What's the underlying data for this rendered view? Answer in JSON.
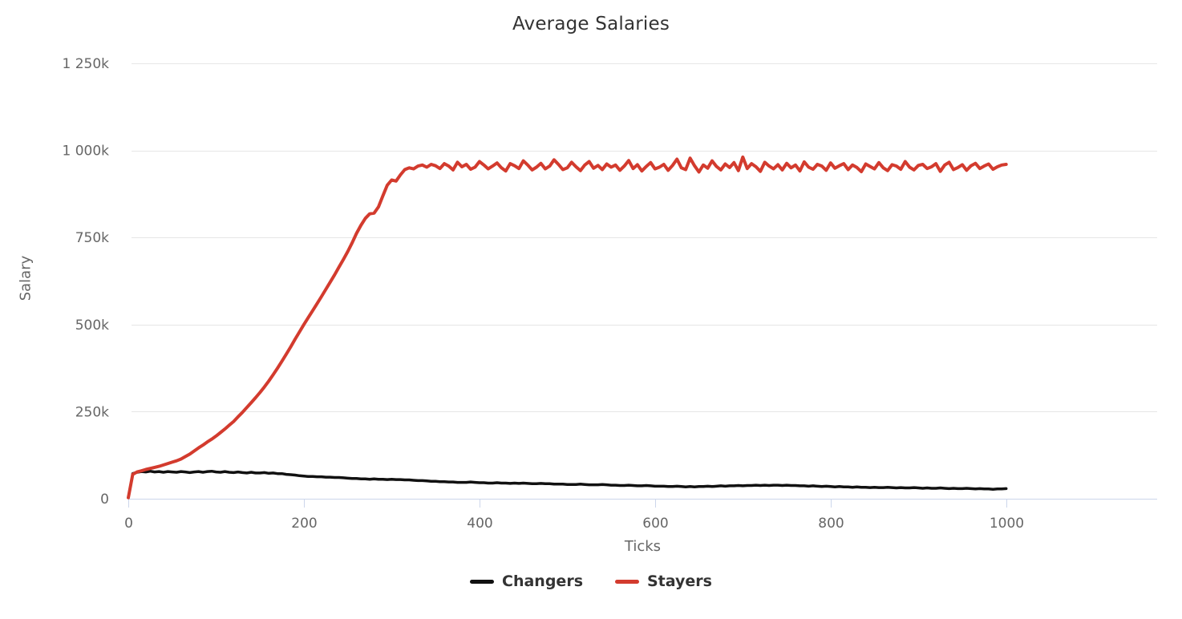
{
  "chart_data": {
    "type": "line",
    "title": "Average Salaries",
    "xlabel": "Ticks",
    "ylabel": "Salary",
    "values_unit": "thousands",
    "xlim": [
      0,
      1172
    ],
    "ylim": [
      0,
      1250
    ],
    "grid": "horizontal-only",
    "legend_position": "bottom",
    "colors": {
      "background": "#ffffff",
      "grid_line": "#e6e6e6",
      "axis_line": "#ccd6eb",
      "tick_label": "#666666",
      "axis_title": "#666666",
      "chart_title": "#333333",
      "legend_text": "#333333",
      "changers": "#111111",
      "stayers": "#d33b2e"
    },
    "x_ticks": [
      {
        "value": 0,
        "label": "0"
      },
      {
        "value": 200,
        "label": "200"
      },
      {
        "value": 400,
        "label": "400"
      },
      {
        "value": 600,
        "label": "600"
      },
      {
        "value": 800,
        "label": "800"
      },
      {
        "value": 1000,
        "label": "1000"
      }
    ],
    "y_ticks": [
      {
        "value": 0,
        "label": "0"
      },
      {
        "value": 250,
        "label": "250k"
      },
      {
        "value": 500,
        "label": "500k"
      },
      {
        "value": 750,
        "label": "750k"
      },
      {
        "value": 1000,
        "label": "1 000k"
      },
      {
        "value": 1250,
        "label": "1 250k"
      }
    ],
    "series": [
      {
        "name": "Changers",
        "color": "#111111",
        "line_width": 3.5,
        "t0": 5,
        "dt": 5,
        "values": [
          72,
          76,
          78,
          77,
          79,
          77,
          78,
          76,
          78,
          77,
          76,
          78,
          77,
          75,
          77,
          78,
          76,
          78,
          79,
          77,
          76,
          78,
          76,
          75,
          77,
          75,
          74,
          76,
          74,
          74,
          75,
          73,
          74,
          72,
          72,
          70,
          69,
          68,
          66,
          65,
          64,
          64,
          63,
          63,
          62,
          62,
          61,
          61,
          60,
          59,
          58,
          58,
          57,
          57,
          56,
          57,
          56,
          56,
          55,
          56,
          55,
          55,
          54,
          54,
          53,
          52,
          52,
          51,
          50,
          50,
          49,
          49,
          48,
          48,
          47,
          47,
          47,
          48,
          47,
          46,
          46,
          45,
          45,
          46,
          45,
          45,
          44,
          45,
          44,
          45,
          44,
          43,
          43,
          44,
          43,
          43,
          42,
          42,
          42,
          41,
          41,
          41,
          42,
          41,
          40,
          40,
          40,
          41,
          40,
          39,
          39,
          38,
          38,
          39,
          38,
          37,
          37,
          38,
          37,
          36,
          36,
          36,
          35,
          35,
          36,
          35,
          34,
          35,
          34,
          35,
          35,
          36,
          35,
          36,
          37,
          36,
          37,
          37,
          38,
          37,
          38,
          38,
          39,
          38,
          39,
          38,
          39,
          39,
          38,
          39,
          38,
          38,
          37,
          37,
          36,
          37,
          36,
          35,
          36,
          35,
          34,
          35,
          34,
          34,
          33,
          34,
          33,
          33,
          32,
          33,
          32,
          32,
          33,
          32,
          31,
          32,
          31,
          31,
          32,
          31,
          30,
          31,
          30,
          30,
          31,
          30,
          29,
          30,
          29,
          29,
          30,
          29,
          28,
          29,
          28,
          28,
          27,
          28,
          28,
          29
        ]
      },
      {
        "name": "Stayers",
        "color": "#d33b2e",
        "line_width": 4,
        "t0": 0,
        "dt": 5,
        "values": [
          3,
          70,
          77,
          80,
          84,
          87,
          90,
          93,
          97,
          101,
          105,
          109,
          114,
          121,
          128,
          137,
          146,
          154,
          163,
          171,
          180,
          190,
          200,
          211,
          222,
          235,
          248,
          262,
          276,
          290,
          305,
          321,
          338,
          356,
          375,
          395,
          415,
          436,
          458,
          479,
          500,
          520,
          540,
          560,
          580,
          601,
          622,
          643,
          665,
          687,
          710,
          735,
          762,
          785,
          805,
          818,
          820,
          838,
          870,
          900,
          915,
          912,
          930,
          945,
          950,
          947,
          955,
          958,
          952,
          960,
          956,
          948,
          962,
          955,
          944,
          966,
          953,
          960,
          946,
          952,
          968,
          958,
          947,
          955,
          964,
          950,
          941,
          962,
          956,
          948,
          970,
          958,
          944,
          952,
          963,
          947,
          955,
          973,
          960,
          945,
          950,
          966,
          953,
          942,
          958,
          968,
          949,
          957,
          945,
          961,
          952,
          958,
          943,
          955,
          971,
          948,
          959,
          941,
          954,
          965,
          947,
          952,
          960,
          943,
          957,
          975,
          950,
          945,
          978,
          956,
          938,
          958,
          949,
          970,
          954,
          944,
          961,
          951,
          965,
          942,
          981,
          948,
          962,
          953,
          940,
          966,
          955,
          947,
          959,
          944,
          963,
          950,
          958,
          941,
          967,
          952,
          946,
          960,
          955,
          943,
          964,
          949,
          956,
          962,
          945,
          958,
          951,
          939,
          961,
          954,
          947,
          965,
          950,
          942,
          959,
          955,
          946,
          968,
          952,
          944,
          957,
          960,
          948,
          953,
          962,
          940,
          958,
          966,
          945,
          951,
          959,
          943,
          956,
          963,
          948,
          955,
          961,
          946,
          953,
          958,
          960
        ]
      }
    ]
  }
}
